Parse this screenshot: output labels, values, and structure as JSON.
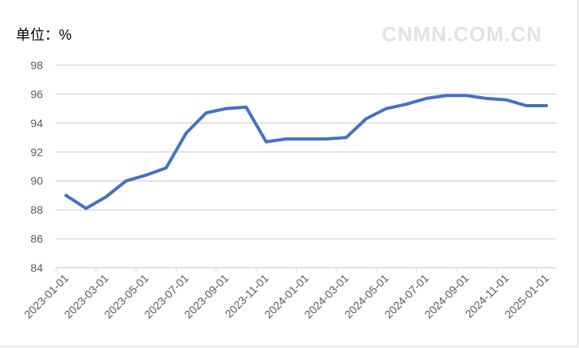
{
  "chart_data": {
    "type": "line",
    "unit_label": "单位：%",
    "x": [
      "2023-01-01",
      "2023-02-01",
      "2023-03-01",
      "2023-04-01",
      "2023-05-01",
      "2023-06-01",
      "2023-07-01",
      "2023-08-01",
      "2023-09-01",
      "2023-10-01",
      "2023-11-01",
      "2023-12-01",
      "2024-01-01",
      "2024-02-01",
      "2024-03-01",
      "2024-04-01",
      "2024-05-01",
      "2024-06-01",
      "2024-07-01",
      "2024-08-01",
      "2024-09-01",
      "2024-10-01",
      "2024-11-01",
      "2024-12-01",
      "2025-01-01"
    ],
    "x_tick_labels": [
      "2023-01-01",
      "2023-03-01",
      "2023-05-01",
      "2023-07-01",
      "2023-09-01",
      "2023-11-01",
      "2024-01-01",
      "2024-03-01",
      "2024-05-01",
      "2024-07-01",
      "2024-09-01",
      "2024-11-01",
      "2025-01-01"
    ],
    "series": [
      {
        "values": [
          89.0,
          88.1,
          88.9,
          90.0,
          90.4,
          90.9,
          93.3,
          94.7,
          95.0,
          95.1,
          92.7,
          92.9,
          92.9,
          92.9,
          93.0,
          94.3,
          95.0,
          95.3,
          95.7,
          95.9,
          95.9,
          95.7,
          95.6,
          95.2,
          95.2
        ],
        "color": "#4472c4"
      }
    ],
    "ylim": [
      84,
      98
    ],
    "y_ticks": [
      "84",
      "86",
      "88",
      "90",
      "92",
      "94",
      "96",
      "98"
    ],
    "grid": true,
    "legend": "none"
  },
  "watermark": "CNMN.COM.CN"
}
